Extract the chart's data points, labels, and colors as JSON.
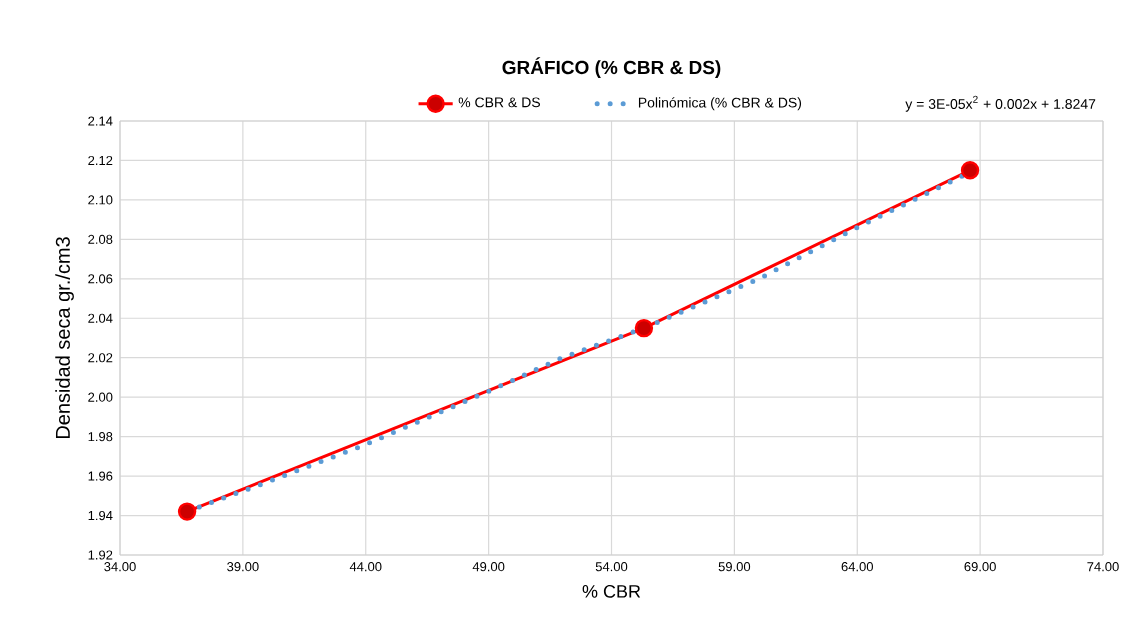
{
  "chart_data": {
    "type": "line",
    "title": "GRÁFICO (% CBR & DS)",
    "xlabel": "% CBR",
    "ylabel": "Densidad seca gr./cm3",
    "xlim": [
      34,
      74
    ],
    "xticks": [
      {
        "value": 34,
        "label": "34.00"
      },
      {
        "value": 39,
        "label": "39.00"
      },
      {
        "value": 44,
        "label": "44.00"
      },
      {
        "value": 49,
        "label": "49.00"
      },
      {
        "value": 54,
        "label": "54.00"
      },
      {
        "value": 59,
        "label": "59.00"
      },
      {
        "value": 64,
        "label": "64.00"
      },
      {
        "value": 69,
        "label": "69.00"
      },
      {
        "value": 74,
        "label": "74.00"
      }
    ],
    "ylim": [
      1.92,
      2.14
    ],
    "yticks": [
      1.92,
      1.94,
      1.96,
      1.98,
      {
        "value": 2.0,
        "label": "2.00"
      },
      2.02,
      2.04,
      2.06,
      2.08,
      {
        "value": 2.1,
        "label": "2.10"
      },
      2.12,
      2.14
    ],
    "grid": true,
    "legend": "top",
    "series": [
      {
        "name": "% CBR & DS",
        "color": "#ff0000",
        "marker": "circle",
        "line_style": "solid",
        "x": [
          36.73,
          55.32,
          68.59
        ],
        "values": [
          1.942,
          2.035,
          2.115
        ]
      },
      {
        "name": "Polinómica (% CBR & DS)",
        "color": "#5b9bd5",
        "marker": "none",
        "line_style": "dotted",
        "x": [
          36.73,
          40,
          44,
          49,
          52,
          55.32,
          60,
          64,
          68.59
        ],
        "values": [
          1.942,
          1.957,
          1.976,
          2.003,
          2.02,
          2.035,
          2.06,
          2.086,
          2.114
        ]
      }
    ],
    "annotations": [
      "y = 3E-05x$^{2}$ + 0.002x + 1.8247"
    ]
  }
}
